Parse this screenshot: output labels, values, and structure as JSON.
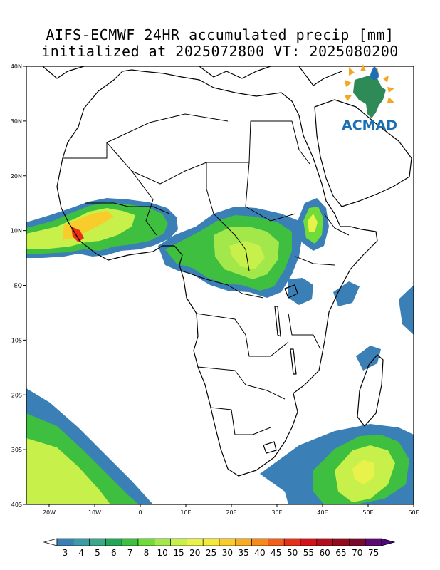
{
  "title": {
    "line1": "AIFS-ECMWF 24HR accumulated precip [mm]",
    "line2": "initialized at 2025072800 VT: 2025080200"
  },
  "axes": {
    "lat_labels": [
      "40N",
      "30N",
      "20N",
      "10N",
      "EQ",
      "10S",
      "20S",
      "30S",
      "40S"
    ],
    "lat_values": [
      40,
      30,
      20,
      10,
      0,
      -10,
      -20,
      -30,
      -40
    ],
    "lon_labels": [
      "20W",
      "10W",
      "0",
      "10E",
      "20E",
      "30E",
      "40E",
      "50E",
      "60E"
    ],
    "lon_values": [
      -20,
      -10,
      0,
      10,
      20,
      30,
      40,
      50,
      60
    ],
    "lon_range": [
      -25,
      60
    ],
    "lat_range": [
      -40,
      40
    ]
  },
  "colorbar": {
    "levels": [
      "3",
      "4",
      "5",
      "6",
      "7",
      "8",
      "10",
      "15",
      "20",
      "25",
      "30",
      "35",
      "40",
      "45",
      "50",
      "55",
      "60",
      "65",
      "70",
      "75"
    ],
    "colors": [
      "#3a7fb5",
      "#3d9aa8",
      "#3ba889",
      "#23a657",
      "#3fbf3f",
      "#6fdc3a",
      "#a3e84a",
      "#c7f04a",
      "#e8f24a",
      "#f6e83a",
      "#f8cc2a",
      "#f8ac22",
      "#f78a1c",
      "#f0601a",
      "#e83018",
      "#d41018",
      "#b40c18",
      "#940a18",
      "#780a30",
      "#5a0a70"
    ]
  },
  "logo": {
    "text": "ACMAD"
  },
  "colors": {
    "coast": "#000000",
    "light_blue": "#3a7fb5",
    "teal": "#3d9aa8",
    "green": "#3fbf3f",
    "yellow": "#e8f24a",
    "orange": "#f8ac22",
    "red": "#e83018"
  }
}
